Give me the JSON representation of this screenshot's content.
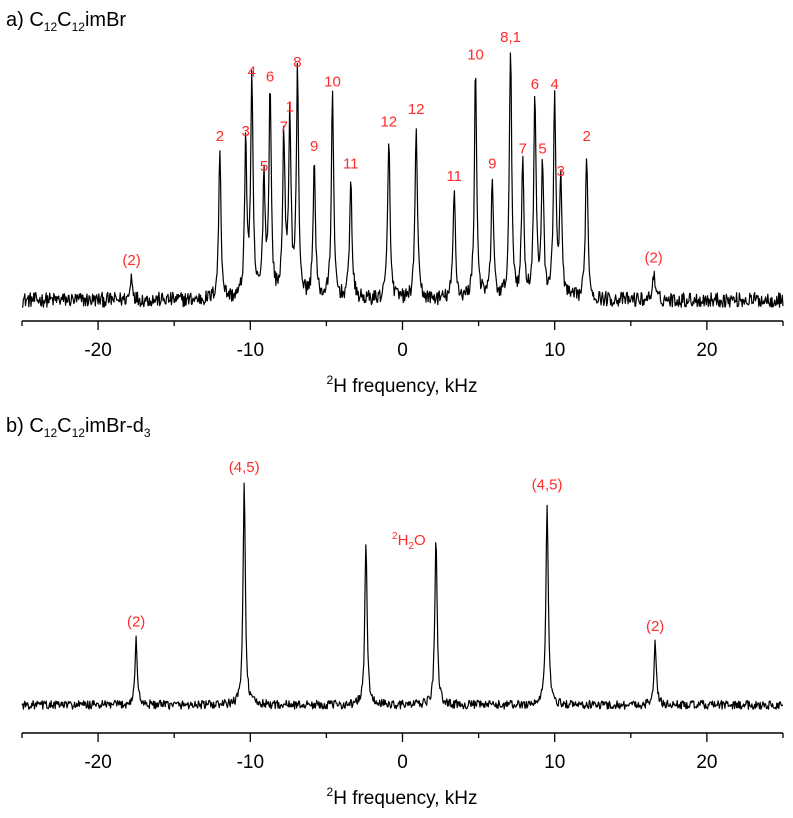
{
  "figure": {
    "panels": [
      {
        "id": "a",
        "prefix": "a) ",
        "title_parts": [
          "C",
          "12",
          "C",
          "12",
          "imBr"
        ],
        "xlabel_sup": "2",
        "xlabel_rest": "H frequency, kHz",
        "xticks": [
          "-20",
          "-10",
          "0",
          "10",
          "20"
        ],
        "peak_labels": [
          "(2)",
          "2",
          "3",
          "4",
          "5",
          "6",
          "7",
          "1",
          "8",
          "9",
          "10",
          "11",
          "12",
          "12",
          "11",
          "10",
          "9",
          "8,1",
          "7",
          "6",
          "5",
          "4",
          "3",
          "2",
          "(2)"
        ]
      },
      {
        "id": "b",
        "prefix": "b) ",
        "title_parts": [
          "C",
          "12",
          "C",
          "12",
          "imBr-d",
          "3"
        ],
        "xlabel_sup": "2",
        "xlabel_rest": "H frequency, kHz",
        "xticks": [
          "-20",
          "-10",
          "0",
          "10",
          "20"
        ],
        "peak_labels": [
          "(2)",
          "(4,5)",
          "(4,5)",
          "(2)"
        ],
        "water_label": {
          "sup": "2",
          "a": "H",
          "sub": "2",
          "b": "O"
        }
      }
    ]
  },
  "chart_data": [
    {
      "type": "line",
      "title": "a) C12C12imBr",
      "xlabel": "2H frequency, kHz",
      "xlim": [
        -25,
        25
      ],
      "xticks": [
        -20,
        -10,
        0,
        10,
        20
      ],
      "y_units": "relative intensity (fraction of tallest peak)",
      "baseline": 0.0,
      "noise": 0.03,
      "peaks": [
        {
          "x": -17.8,
          "y": 0.1,
          "label": "(2)"
        },
        {
          "x": -12.0,
          "y": 0.6,
          "label": "2"
        },
        {
          "x": -10.3,
          "y": 0.62,
          "label": "3"
        },
        {
          "x": -9.9,
          "y": 0.86,
          "label": "4"
        },
        {
          "x": -9.1,
          "y": 0.48,
          "label": "5"
        },
        {
          "x": -8.7,
          "y": 0.84,
          "label": "6"
        },
        {
          "x": -7.8,
          "y": 0.64,
          "label": "7"
        },
        {
          "x": -7.4,
          "y": 0.72,
          "label": "1"
        },
        {
          "x": -6.9,
          "y": 0.9,
          "label": "8"
        },
        {
          "x": -5.8,
          "y": 0.56,
          "label": "9"
        },
        {
          "x": -4.6,
          "y": 0.82,
          "label": "10"
        },
        {
          "x": -3.4,
          "y": 0.49,
          "label": "11"
        },
        {
          "x": -0.9,
          "y": 0.66,
          "label": "12"
        },
        {
          "x": 0.9,
          "y": 0.71,
          "label": "12"
        },
        {
          "x": 3.4,
          "y": 0.44,
          "label": "11"
        },
        {
          "x": 4.8,
          "y": 0.93,
          "label": "10"
        },
        {
          "x": 5.9,
          "y": 0.49,
          "label": "9"
        },
        {
          "x": 7.1,
          "y": 1.0,
          "label": "8,1"
        },
        {
          "x": 7.9,
          "y": 0.55,
          "label": "7"
        },
        {
          "x": 8.7,
          "y": 0.81,
          "label": "6"
        },
        {
          "x": 9.2,
          "y": 0.55,
          "label": "5"
        },
        {
          "x": 10.0,
          "y": 0.81,
          "label": "4"
        },
        {
          "x": 10.4,
          "y": 0.46,
          "label": "3"
        },
        {
          "x": 12.1,
          "y": 0.6,
          "label": "2"
        },
        {
          "x": 16.5,
          "y": 0.11,
          "label": "(2)"
        }
      ]
    },
    {
      "type": "line",
      "title": "b) C12C12imBr-d3",
      "xlabel": "2H frequency, kHz",
      "xlim": [
        -25,
        25
      ],
      "xticks": [
        -20,
        -10,
        0,
        10,
        20
      ],
      "y_units": "relative intensity (fraction of tallest peak)",
      "baseline": 0.0,
      "noise": 0.02,
      "peaks": [
        {
          "x": -17.5,
          "y": 0.3,
          "label": "(2)"
        },
        {
          "x": -10.4,
          "y": 1.0,
          "label": "(4,5)"
        },
        {
          "x": -2.4,
          "y": 0.73,
          "label": ""
        },
        {
          "x": 2.2,
          "y": 0.75,
          "label": "2H2O"
        },
        {
          "x": 9.5,
          "y": 0.92,
          "label": "(4,5)"
        },
        {
          "x": 16.6,
          "y": 0.28,
          "label": "(2)"
        }
      ]
    }
  ]
}
